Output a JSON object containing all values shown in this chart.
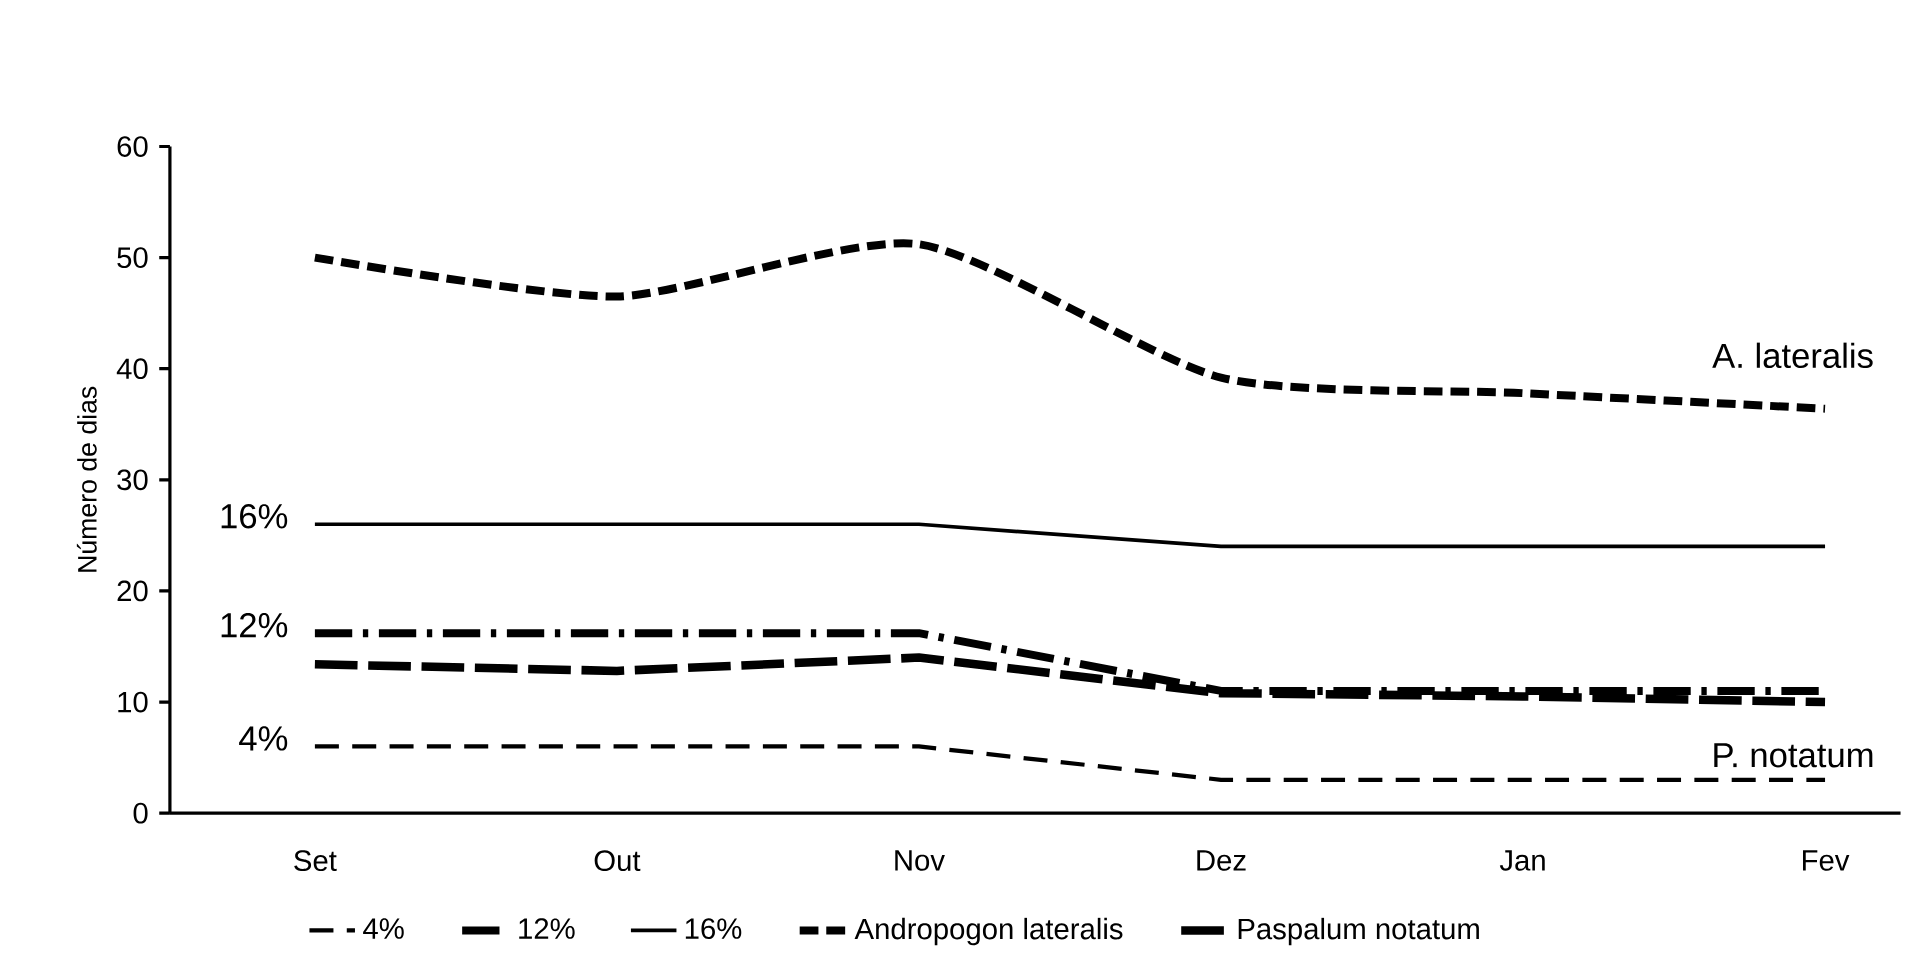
{
  "chart_data": {
    "type": "line",
    "ylabel": "Número de dias",
    "categories": [
      "Set",
      "Out",
      "Nov",
      "Dez",
      "Jan",
      "Fev"
    ],
    "ylim": [
      0,
      60
    ],
    "yticks": [
      0,
      10,
      20,
      30,
      40,
      50,
      60
    ],
    "grid": false,
    "legend": "bottom",
    "marker": "none",
    "series": [
      {
        "name": "4%",
        "color": "#000000",
        "line_style": "dashed",
        "values": [
          6,
          6,
          6,
          3,
          3,
          3
        ]
      },
      {
        "name": "12%",
        "color": "#000000",
        "line_style": "dashdot",
        "values": [
          16.2,
          16.2,
          16.2,
          11,
          11,
          11
        ]
      },
      {
        "name": "16%",
        "color": "#000000",
        "line_style": "solid",
        "values": [
          26,
          26,
          26,
          24,
          24,
          24
        ]
      },
      {
        "name": "Andropogon lateralis",
        "color": "#000000",
        "line_style": "densedashed",
        "values": [
          50,
          46.5,
          51.2,
          39.2,
          37.8,
          36.4
        ]
      },
      {
        "name": "Paspalum notatum",
        "color": "#000000",
        "line_style": "longdashed",
        "values": [
          13.4,
          12.8,
          14,
          10.8,
          10.5,
          10
        ]
      }
    ],
    "annotations": [
      {
        "text": "16%",
        "x": "Set",
        "y": 26
      },
      {
        "text": "12%",
        "x": "Set",
        "y": 16.2
      },
      {
        "text": "4%",
        "x": "Set",
        "y": 6
      },
      {
        "text": "A. lateralis",
        "x": "Fev",
        "y": 36.4
      },
      {
        "text": "P. notatum",
        "x": "Fev",
        "y": 10
      }
    ]
  }
}
